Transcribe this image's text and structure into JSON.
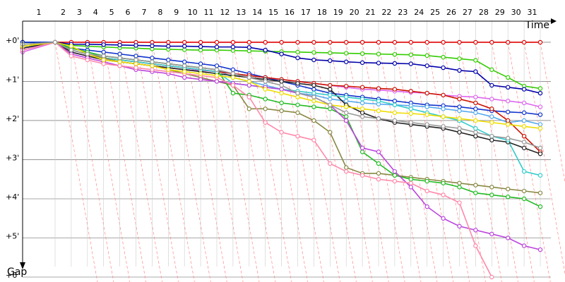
{
  "chart_data": {
    "type": "line",
    "x_label": "Time",
    "y_label": "Gap",
    "x": [
      0,
      1,
      2,
      3,
      4,
      5,
      6,
      7,
      8,
      9,
      10,
      11,
      12,
      13,
      14,
      15,
      16,
      17,
      18,
      19,
      20,
      21,
      22,
      23,
      24,
      25,
      26,
      27,
      28,
      29,
      30,
      31
    ],
    "xlim": [
      0,
      31
    ],
    "xticks": [
      {
        "value": 0.5,
        "label": "1"
      },
      {
        "value": 1.5,
        "label": "2"
      },
      {
        "value": 2.5,
        "label": "3"
      },
      {
        "value": 3.5,
        "label": "4"
      },
      {
        "value": 4.5,
        "label": "5"
      },
      {
        "value": 5.5,
        "label": "6"
      },
      {
        "value": 6.5,
        "label": "7"
      },
      {
        "value": 7.5,
        "label": "8"
      },
      {
        "value": 8.5,
        "label": "9"
      },
      {
        "value": 9.5,
        "label": "10"
      },
      {
        "value": 10.5,
        "label": "11"
      },
      {
        "value": 11.5,
        "label": "12"
      },
      {
        "value": 12.5,
        "label": "13"
      },
      {
        "value": 13.5,
        "label": "14"
      },
      {
        "value": 14.5,
        "label": "15"
      },
      {
        "value": 15.5,
        "label": "16"
      },
      {
        "value": 16.5,
        "label": "17"
      },
      {
        "value": 17.5,
        "label": "18"
      },
      {
        "value": 18.5,
        "label": "19"
      },
      {
        "value": 19.5,
        "label": "20"
      },
      {
        "value": 20.5,
        "label": "21"
      },
      {
        "value": 21.5,
        "label": "22"
      },
      {
        "value": 22.5,
        "label": "23"
      },
      {
        "value": 23.5,
        "label": "24"
      },
      {
        "value": 24.5,
        "label": "25"
      },
      {
        "value": 25.5,
        "label": "26"
      },
      {
        "value": 26.5,
        "label": "27"
      },
      {
        "value": 27.5,
        "label": "28"
      },
      {
        "value": 28.5,
        "label": "29"
      },
      {
        "value": 29.5,
        "label": "30"
      },
      {
        "value": 30.5,
        "label": "31"
      }
    ],
    "ylim": [
      -0.54,
      6
    ],
    "yticks": [
      {
        "value": 0,
        "label": "+0'"
      },
      {
        "value": 1,
        "label": "+1'"
      },
      {
        "value": 2,
        "label": "+2'"
      },
      {
        "value": 3,
        "label": "+3'"
      },
      {
        "value": 4,
        "label": "+4'"
      },
      {
        "value": 5,
        "label": "+5'"
      },
      {
        "value": 6,
        "label": "+6"
      }
    ],
    "grid": true,
    "series": [
      {
        "color": "#e00000",
        "values": [
          0,
          0,
          0,
          0,
          0,
          0,
          0,
          0,
          0,
          0,
          0,
          0,
          0,
          0,
          0,
          0,
          0,
          0,
          0,
          0,
          0,
          0,
          0,
          0,
          0,
          0,
          0,
          0,
          0,
          0,
          0,
          0
        ]
      },
      {
        "color": "#33cc00",
        "values": [
          0,
          0,
          0.08,
          0.1,
          0.12,
          0.14,
          0.15,
          0.17,
          0.18,
          0.19,
          0.2,
          0.2,
          0.21,
          0.22,
          0.23,
          0.24,
          0.25,
          0.26,
          0.27,
          0.28,
          0.29,
          0.3,
          0.31,
          0.32,
          0.34,
          0.38,
          0.42,
          0.46,
          0.7,
          0.9,
          1.12,
          1.18
        ]
      },
      {
        "color": "#0000aa",
        "values": [
          0,
          0,
          0.05,
          0.05,
          0.06,
          0.07,
          0.08,
          0.09,
          0.1,
          0.1,
          0.11,
          0.12,
          0.12,
          0.13,
          0.2,
          0.3,
          0.4,
          0.45,
          0.47,
          0.5,
          0.52,
          0.53,
          0.54,
          0.55,
          0.6,
          0.65,
          0.72,
          0.75,
          1.1,
          1.15,
          1.2,
          1.3
        ]
      },
      {
        "color": "#dd66ee",
        "values": [
          0.25,
          0,
          0.25,
          0.35,
          0.45,
          0.5,
          0.55,
          0.6,
          0.65,
          0.7,
          0.72,
          0.75,
          0.8,
          0.85,
          0.9,
          0.95,
          1.0,
          1.05,
          1.1,
          1.15,
          1.2,
          1.22,
          1.25,
          1.28,
          1.3,
          1.35,
          1.38,
          1.4,
          1.45,
          1.5,
          1.55,
          1.65
        ]
      },
      {
        "color": "#1133cc",
        "values": [
          0,
          0,
          0.15,
          0.2,
          0.25,
          0.3,
          0.35,
          0.4,
          0.45,
          0.5,
          0.55,
          0.6,
          0.7,
          0.8,
          0.9,
          1.0,
          1.1,
          1.2,
          1.3,
          1.35,
          1.4,
          1.45,
          1.5,
          1.55,
          1.6,
          1.62,
          1.65,
          1.7,
          1.75,
          1.78,
          1.8,
          1.85
        ]
      },
      {
        "color": "#55aaee",
        "values": [
          0.15,
          0,
          0.15,
          0.25,
          0.35,
          0.4,
          0.45,
          0.5,
          0.55,
          0.6,
          0.65,
          0.7,
          0.9,
          1.0,
          1.1,
          1.2,
          1.3,
          1.35,
          1.45,
          1.5,
          1.55,
          1.58,
          1.6,
          1.62,
          1.65,
          1.7,
          1.75,
          1.8,
          1.9,
          2.05,
          2.0,
          2.1
        ]
      },
      {
        "color": "#cc1100",
        "values": [
          0.1,
          0,
          0.2,
          0.3,
          0.4,
          0.45,
          0.5,
          0.55,
          0.6,
          0.65,
          0.7,
          0.75,
          0.8,
          0.85,
          0.9,
          0.95,
          1.0,
          1.05,
          1.1,
          1.12,
          1.15,
          1.18,
          1.2,
          1.25,
          1.3,
          1.35,
          1.45,
          1.55,
          1.7,
          2.0,
          2.4,
          2.8
        ]
      },
      {
        "color": "#222222",
        "values": [
          0.15,
          0,
          0.25,
          0.35,
          0.45,
          0.5,
          0.55,
          0.6,
          0.65,
          0.7,
          0.75,
          0.8,
          0.85,
          0.9,
          0.95,
          1.0,
          1.05,
          1.1,
          1.2,
          1.6,
          1.8,
          1.95,
          2.05,
          2.1,
          2.15,
          2.2,
          2.3,
          2.4,
          2.5,
          2.55,
          2.7,
          2.85
        ]
      },
      {
        "color": "#33cccc",
        "values": [
          0.1,
          0,
          0.2,
          0.3,
          0.4,
          0.45,
          0.5,
          0.55,
          0.6,
          0.65,
          0.7,
          0.75,
          1.05,
          1.1,
          1.15,
          1.2,
          1.25,
          1.3,
          1.35,
          1.4,
          1.45,
          1.5,
          1.6,
          1.7,
          1.8,
          1.9,
          2.0,
          2.2,
          2.4,
          2.5,
          3.3,
          3.4
        ]
      },
      {
        "color": "#888844",
        "values": [
          0.1,
          0,
          0.2,
          0.3,
          0.4,
          0.5,
          0.55,
          0.6,
          0.7,
          0.8,
          0.9,
          1.0,
          1.1,
          1.7,
          1.7,
          1.75,
          1.8,
          2.0,
          2.3,
          3.2,
          3.35,
          3.35,
          3.4,
          3.45,
          3.5,
          3.55,
          3.6,
          3.65,
          3.7,
          3.75,
          3.8,
          3.85
        ]
      },
      {
        "color": "#22bb22",
        "values": [
          0.05,
          0,
          0.15,
          0.25,
          0.35,
          0.4,
          0.45,
          0.5,
          0.55,
          0.6,
          0.65,
          0.7,
          1.3,
          1.35,
          1.45,
          1.55,
          1.6,
          1.65,
          1.7,
          1.9,
          2.8,
          3.1,
          3.4,
          3.5,
          3.55,
          3.6,
          3.7,
          3.85,
          3.9,
          3.95,
          4.0,
          4.2
        ]
      },
      {
        "color": "#bb44dd",
        "values": [
          0.2,
          0,
          0.3,
          0.4,
          0.5,
          0.6,
          0.7,
          0.75,
          0.8,
          0.9,
          0.95,
          1.0,
          1.05,
          1.1,
          1.15,
          1.2,
          1.3,
          1.4,
          1.6,
          2.0,
          2.7,
          2.8,
          3.3,
          3.7,
          4.2,
          4.5,
          4.7,
          4.8,
          4.9,
          5.0,
          5.2,
          5.3
        ]
      },
      {
        "color": "#ff88aa",
        "values": [
          0.2,
          0,
          0.35,
          0.45,
          0.55,
          0.6,
          0.65,
          0.7,
          0.75,
          0.8,
          0.85,
          0.9,
          1.1,
          1.4,
          2.05,
          2.3,
          2.4,
          2.5,
          3.1,
          3.3,
          3.4,
          3.5,
          3.55,
          3.6,
          3.8,
          3.9,
          4.1,
          5.2,
          6.0,
          null,
          null,
          null
        ]
      },
      {
        "color": "#eedd00",
        "values": [
          0.1,
          0,
          0.1,
          0.3,
          0.45,
          0.5,
          0.55,
          0.6,
          0.7,
          0.75,
          0.8,
          0.85,
          0.9,
          1.0,
          1.2,
          1.3,
          1.4,
          1.5,
          1.6,
          1.65,
          1.7,
          1.75,
          1.8,
          1.82,
          1.85,
          1.9,
          1.95,
          2.0,
          2.05,
          2.1,
          2.15,
          2.2
        ]
      },
      {
        "color": "#999999",
        "values": [
          0.05,
          0,
          0.2,
          0.3,
          0.35,
          0.4,
          0.45,
          0.5,
          0.55,
          0.6,
          0.65,
          0.7,
          0.8,
          0.9,
          1.0,
          1.1,
          1.3,
          1.4,
          1.6,
          1.8,
          1.9,
          1.95,
          2.0,
          2.05,
          2.1,
          2.15,
          2.2,
          2.3,
          2.4,
          2.45,
          2.55,
          2.7
        ]
      }
    ]
  }
}
